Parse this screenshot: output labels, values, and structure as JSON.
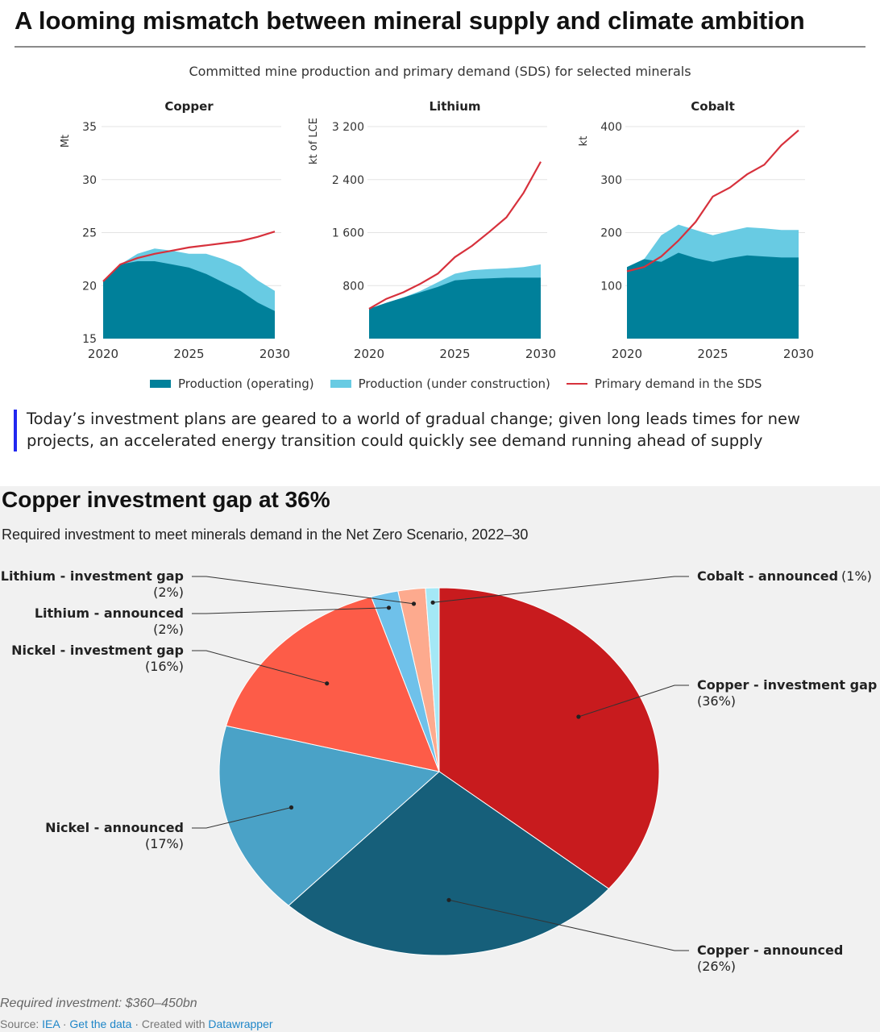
{
  "header": {
    "title": "A looming mismatch between mineral supply and climate ambition",
    "subtitle": "Committed mine production and primary demand (SDS) for selected minerals"
  },
  "colors": {
    "operating": "#00809a",
    "under_construction": "#68cbe3",
    "demand": "#d7313c",
    "pie_copper_gap": "#c81b1e",
    "pie_copper_announced": "#165f7a",
    "pie_nickel_announced": "#4aa2c7",
    "pie_nickel_gap": "#fd5c48",
    "pie_lithium_announced": "#6fc1ea",
    "pie_lithium_gap": "#fdaa8e",
    "pie_cobalt_announced": "#a4e8f6"
  },
  "legend": {
    "operating": "Production (operating)",
    "under_construction": "Production (under construction)",
    "demand": "Primary demand in the SDS"
  },
  "note": "Today’s investment plans are geared to a world of gradual change; given long leads times for new projects, an accelerated energy transition could quickly see demand running ahead of supply",
  "pie": {
    "title": "Copper investment gap at 36%",
    "subtitle": "Required investment to meet minerals demand in the Net Zero Scenario, 2022–30",
    "required_investment": "Required investment: $360–450bn",
    "source_label": "Source:",
    "source_name": "IEA",
    "get_data": "Get the data",
    "created_with": "Created with",
    "datawrapper": "Datawrapper"
  },
  "chart_data": [
    {
      "type": "area",
      "title": "Copper",
      "ylabel": "Mt",
      "ylim": [
        15,
        35
      ],
      "yticks": [
        15,
        20,
        25,
        30,
        35
      ],
      "ytick_labels": [
        "15",
        "20",
        "25",
        "30",
        "35"
      ],
      "xticks": [
        2020,
        2025,
        2030
      ],
      "x": [
        2020,
        2021,
        2022,
        2023,
        2024,
        2025,
        2026,
        2027,
        2028,
        2029,
        2030
      ],
      "series": [
        {
          "name": "Production (operating)",
          "values": [
            20.5,
            22.0,
            22.3,
            22.3,
            22.0,
            21.7,
            21.1,
            20.3,
            19.5,
            18.4,
            17.6
          ]
        },
        {
          "name": "Production (under construction)",
          "values": [
            20.5,
            22.0,
            23.0,
            23.5,
            23.3,
            23.0,
            23.0,
            22.5,
            21.8,
            20.5,
            19.5
          ]
        },
        {
          "name": "Primary demand in the SDS",
          "values": [
            20.4,
            22.0,
            22.6,
            23.0,
            23.3,
            23.6,
            23.8,
            24.0,
            24.2,
            24.6,
            25.1
          ]
        }
      ]
    },
    {
      "type": "area",
      "title": "Lithium",
      "ylabel": "kt of LCE",
      "ylim": [
        0,
        3200
      ],
      "yticks": [
        800,
        1600,
        2400,
        3200
      ],
      "ytick_labels": [
        "800",
        "1 600",
        "2 400",
        "3 200"
      ],
      "xticks": [
        2020,
        2025,
        2030
      ],
      "x": [
        2020,
        2021,
        2022,
        2023,
        2024,
        2025,
        2026,
        2027,
        2028,
        2029,
        2030
      ],
      "series": [
        {
          "name": "Production (operating)",
          "values": [
            450,
            540,
            620,
            700,
            780,
            880,
            900,
            910,
            920,
            920,
            920
          ]
        },
        {
          "name": "Production (under construction)",
          "values": [
            450,
            540,
            620,
            720,
            850,
            980,
            1030,
            1050,
            1060,
            1080,
            1120
          ]
        },
        {
          "name": "Primary demand in the SDS",
          "values": [
            450,
            600,
            700,
            830,
            980,
            1230,
            1400,
            1610,
            1830,
            2200,
            2670
          ]
        }
      ]
    },
    {
      "type": "area",
      "title": "Cobalt",
      "ylabel": "kt",
      "ylim": [
        0,
        400
      ],
      "yticks": [
        100,
        200,
        300,
        400
      ],
      "ytick_labels": [
        "100",
        "200",
        "300",
        "400"
      ],
      "xticks": [
        2020,
        2025,
        2030
      ],
      "x": [
        2020,
        2021,
        2022,
        2023,
        2024,
        2025,
        2026,
        2027,
        2028,
        2029,
        2030
      ],
      "series": [
        {
          "name": "Production (operating)",
          "values": [
            135,
            150,
            145,
            162,
            152,
            145,
            152,
            157,
            155,
            153,
            153
          ]
        },
        {
          "name": "Production (under construction)",
          "values": [
            135,
            150,
            195,
            215,
            205,
            195,
            203,
            210,
            208,
            205,
            205
          ]
        },
        {
          "name": "Primary demand in the SDS",
          "values": [
            127,
            135,
            155,
            185,
            220,
            268,
            285,
            310,
            328,
            365,
            393
          ]
        }
      ]
    },
    {
      "type": "pie",
      "title": "Copper investment gap at 36%",
      "labels": [
        "Copper - investment gap",
        "Copper - announced",
        "Nickel - announced",
        "Nickel - investment gap",
        "Lithium - announced",
        "Lithium - investment gap",
        "Cobalt - announced"
      ],
      "values": [
        36,
        26,
        17,
        16,
        2,
        2,
        1
      ],
      "value_labels": [
        "(36%)",
        "(26%)",
        "(17%)",
        "(16%)",
        "(2%)",
        "(2%)",
        "(1%)"
      ]
    }
  ]
}
